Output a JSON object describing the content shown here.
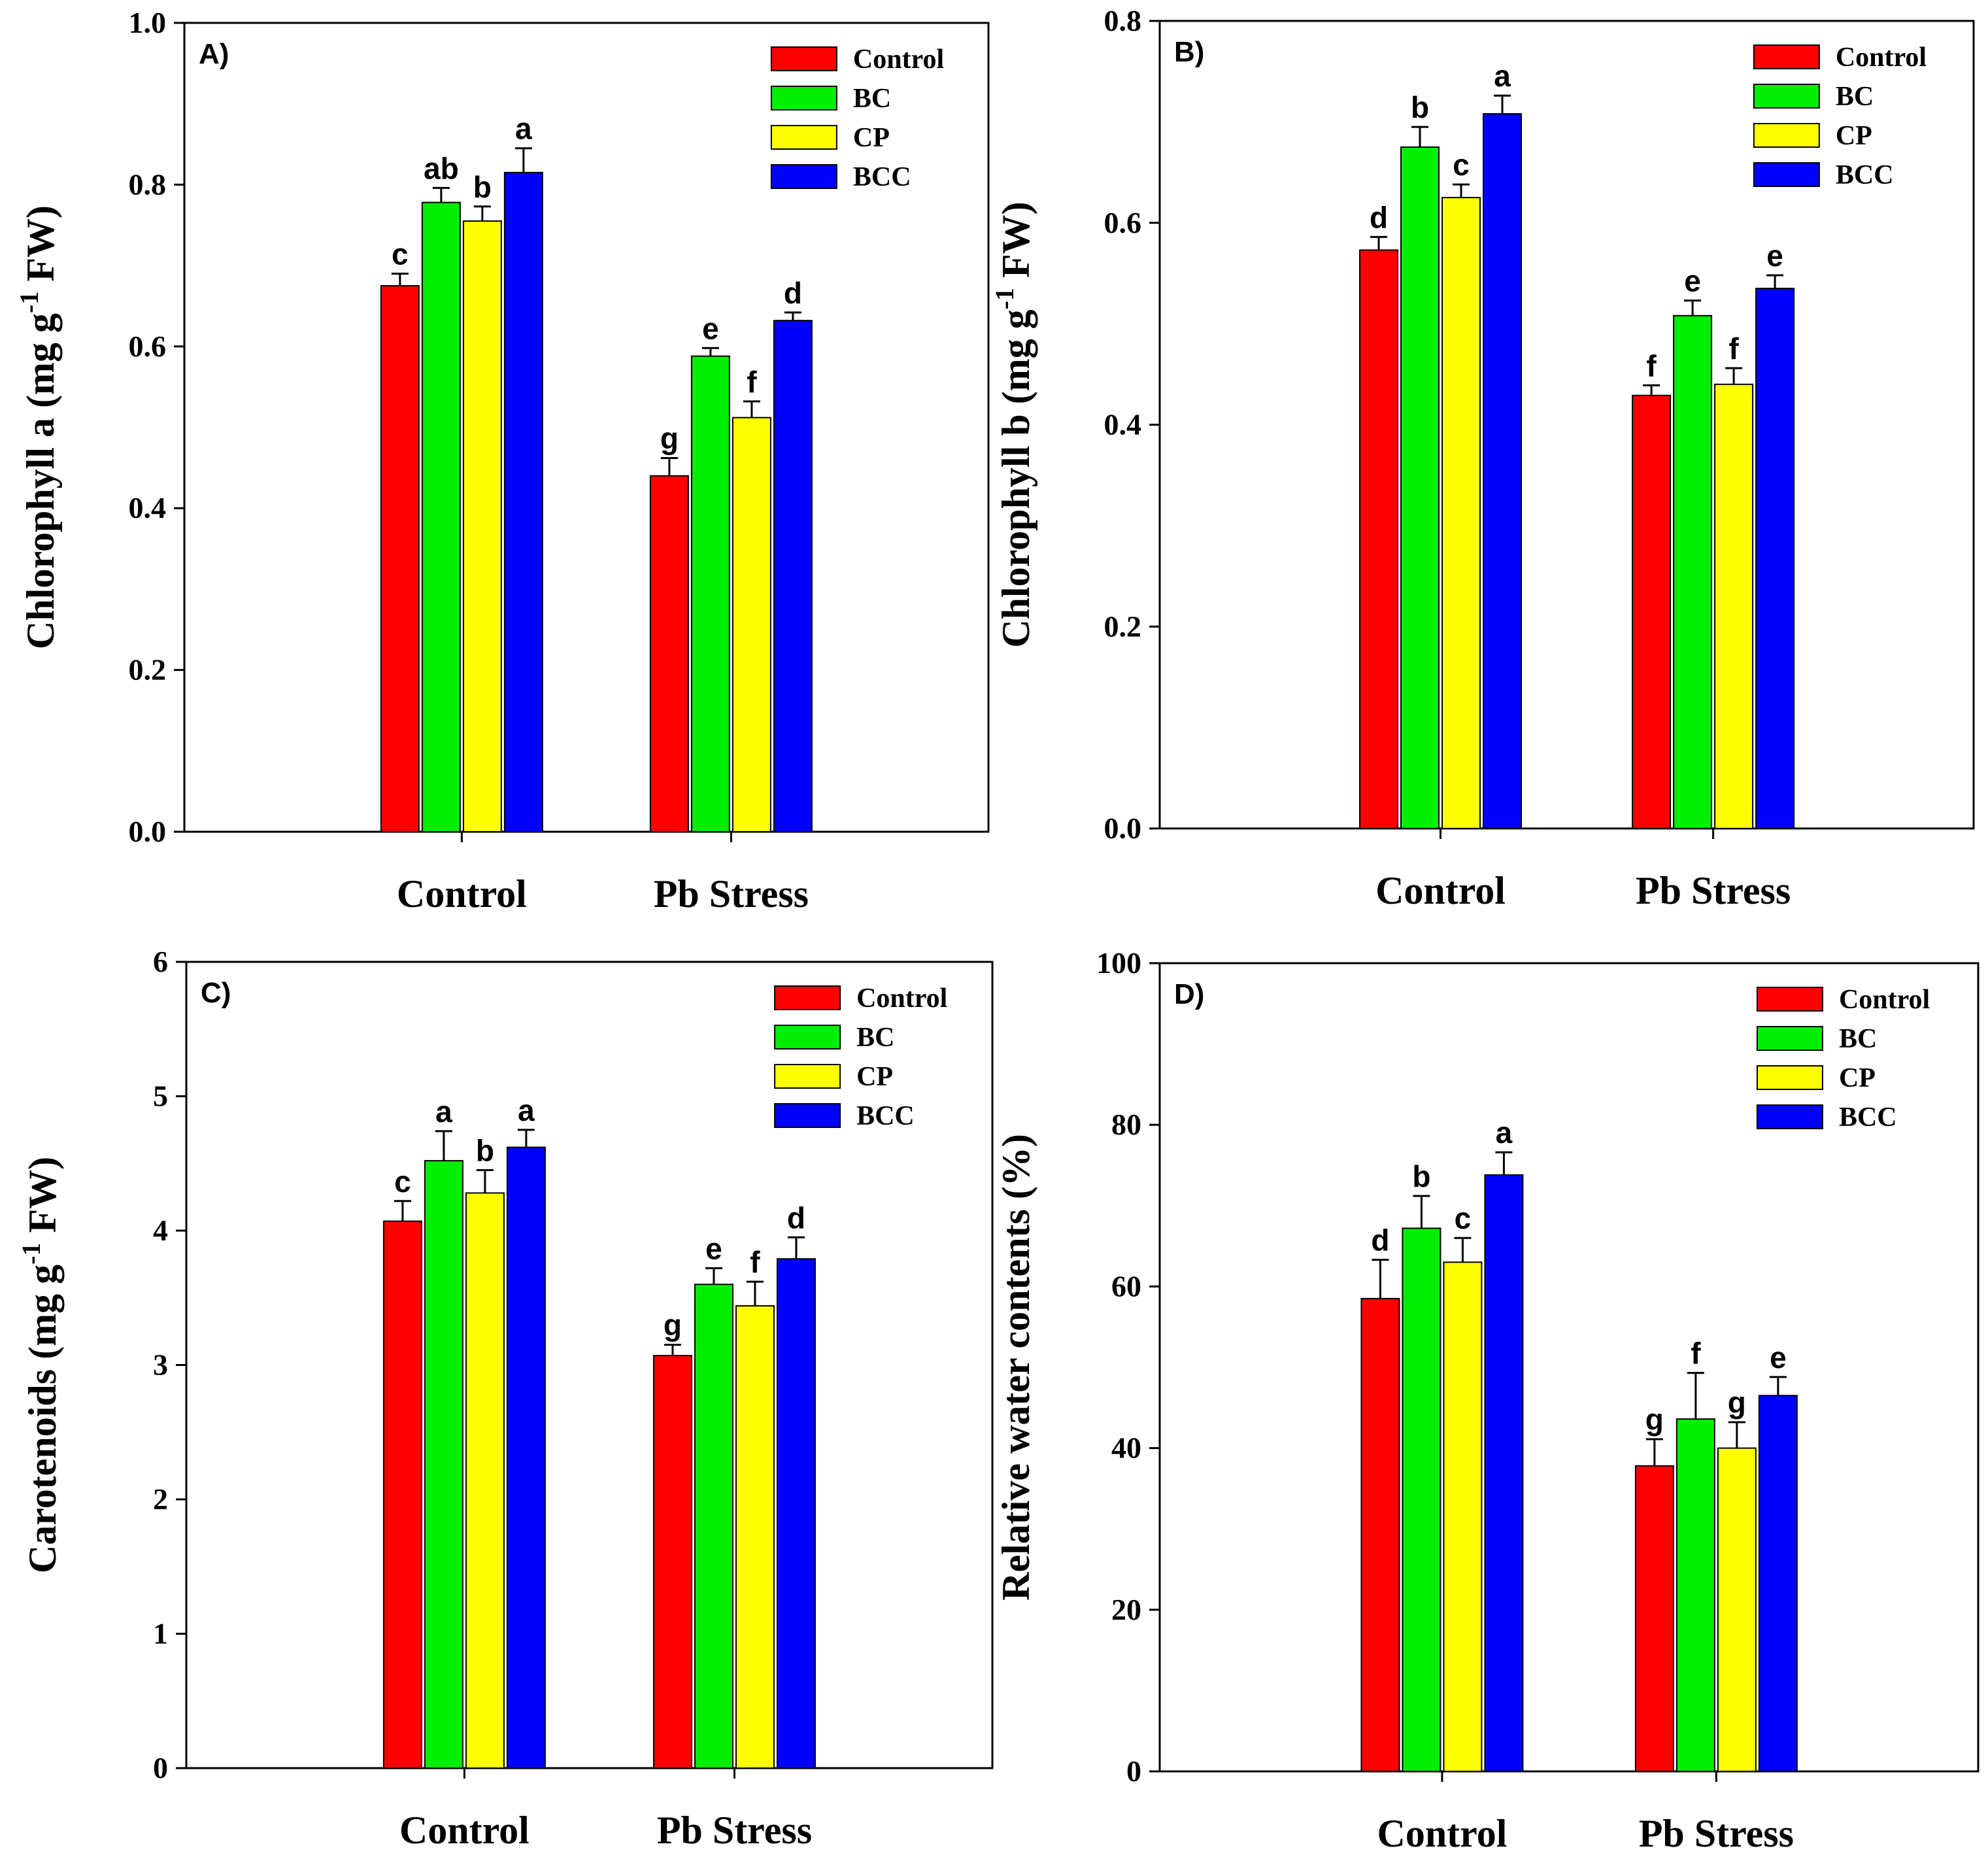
{
  "legend": {
    "items": [
      {
        "name": "Control",
        "color": "#ff0000"
      },
      {
        "name": "BC",
        "color": "#00ee00"
      },
      {
        "name": "CP",
        "color": "#ffff00"
      },
      {
        "name": "BCC",
        "color": "#0000ff"
      }
    ]
  },
  "chart_data": [
    {
      "type": "bar",
      "panel_label": "A)",
      "title": "",
      "categories": [
        "Control",
        "Pb Stress"
      ],
      "ylabel": {
        "main": "Chlorophyll a (mg g",
        "sup": "-1",
        "tail": " FW)"
      },
      "ylim": [
        0,
        1.0
      ],
      "yticks": [
        "0.0",
        "0.2",
        "0.4",
        "0.6",
        "0.8",
        "1.0"
      ],
      "ytick_values": [
        0,
        0.2,
        0.4,
        0.6,
        0.8,
        1.0
      ],
      "series": [
        {
          "name": "Control",
          "values": [
            0.675,
            0.44
          ],
          "errors": [
            0.015,
            0.022
          ],
          "letters": [
            "c",
            "g"
          ]
        },
        {
          "name": "BC",
          "values": [
            0.778,
            0.588
          ],
          "errors": [
            0.018,
            0.01
          ],
          "letters": [
            "ab",
            "e"
          ]
        },
        {
          "name": "CP",
          "values": [
            0.755,
            0.512
          ],
          "errors": [
            0.018,
            0.02
          ],
          "letters": [
            "b",
            "f"
          ]
        },
        {
          "name": "BCC",
          "values": [
            0.815,
            0.632
          ],
          "errors": [
            0.03,
            0.01
          ],
          "letters": [
            "a",
            "d"
          ]
        }
      ]
    },
    {
      "type": "bar",
      "panel_label": "B)",
      "title": "",
      "categories": [
        "Control",
        "Pb Stress"
      ],
      "ylabel": {
        "main": "Chlorophyll b (mg g",
        "sup": "-1",
        "tail": " FW)"
      },
      "ylim": [
        0,
        0.8
      ],
      "yticks": [
        "0.0",
        "0.2",
        "0.4",
        "0.6",
        "0.8"
      ],
      "ytick_values": [
        0,
        0.2,
        0.4,
        0.6,
        0.8
      ],
      "series": [
        {
          "name": "Control",
          "values": [
            0.573,
            0.429
          ],
          "errors": [
            0.013,
            0.01
          ],
          "letters": [
            "d",
            "f"
          ]
        },
        {
          "name": "BC",
          "values": [
            0.675,
            0.508
          ],
          "errors": [
            0.02,
            0.015
          ],
          "letters": [
            "b",
            "e"
          ]
        },
        {
          "name": "CP",
          "values": [
            0.625,
            0.44
          ],
          "errors": [
            0.013,
            0.016
          ],
          "letters": [
            "c",
            "f"
          ]
        },
        {
          "name": "BCC",
          "values": [
            0.708,
            0.535
          ],
          "errors": [
            0.018,
            0.013
          ],
          "letters": [
            "a",
            "e"
          ]
        }
      ]
    },
    {
      "type": "bar",
      "panel_label": "C)",
      "title": "",
      "categories": [
        "Control",
        "Pb Stress"
      ],
      "ylabel": {
        "main": "Carotenoids (mg g",
        "sup": "-1",
        "tail": " FW)"
      },
      "ylim": [
        0,
        6
      ],
      "yticks": [
        "0",
        "1",
        "2",
        "3",
        "4",
        "5",
        "6"
      ],
      "ytick_values": [
        0,
        1,
        2,
        3,
        4,
        5,
        6
      ],
      "series": [
        {
          "name": "Control",
          "values": [
            4.07,
            3.07
          ],
          "errors": [
            0.15,
            0.08
          ],
          "letters": [
            "c",
            "g"
          ]
        },
        {
          "name": "BC",
          "values": [
            4.52,
            3.6
          ],
          "errors": [
            0.22,
            0.12
          ],
          "letters": [
            "a",
            "e"
          ]
        },
        {
          "name": "CP",
          "values": [
            4.28,
            3.44
          ],
          "errors": [
            0.17,
            0.18
          ],
          "letters": [
            "b",
            "f"
          ]
        },
        {
          "name": "BCC",
          "values": [
            4.62,
            3.79
          ],
          "errors": [
            0.13,
            0.16
          ],
          "letters": [
            "a",
            "d"
          ]
        }
      ]
    },
    {
      "type": "bar",
      "panel_label": "D)",
      "title": "",
      "categories": [
        "Control",
        "Pb Stress"
      ],
      "ylabel": {
        "main": "Relative water contents (%)",
        "sup": "",
        "tail": ""
      },
      "ylim": [
        0,
        100
      ],
      "yticks": [
        "0",
        "20",
        "40",
        "60",
        "80",
        "100"
      ],
      "ytick_values": [
        0,
        20,
        40,
        60,
        80,
        100
      ],
      "series": [
        {
          "name": "Control",
          "values": [
            58.5,
            37.8
          ],
          "errors": [
            4.8,
            3.3
          ],
          "letters": [
            "d",
            "g"
          ]
        },
        {
          "name": "BC",
          "values": [
            67.2,
            43.6
          ],
          "errors": [
            4.0,
            5.7
          ],
          "letters": [
            "b",
            "f"
          ]
        },
        {
          "name": "CP",
          "values": [
            63.0,
            40.0
          ],
          "errors": [
            3.0,
            3.2
          ],
          "letters": [
            "c",
            "g"
          ]
        },
        {
          "name": "BCC",
          "values": [
            73.8,
            46.5
          ],
          "errors": [
            2.8,
            2.3
          ],
          "letters": [
            "a",
            "e"
          ]
        }
      ]
    }
  ]
}
